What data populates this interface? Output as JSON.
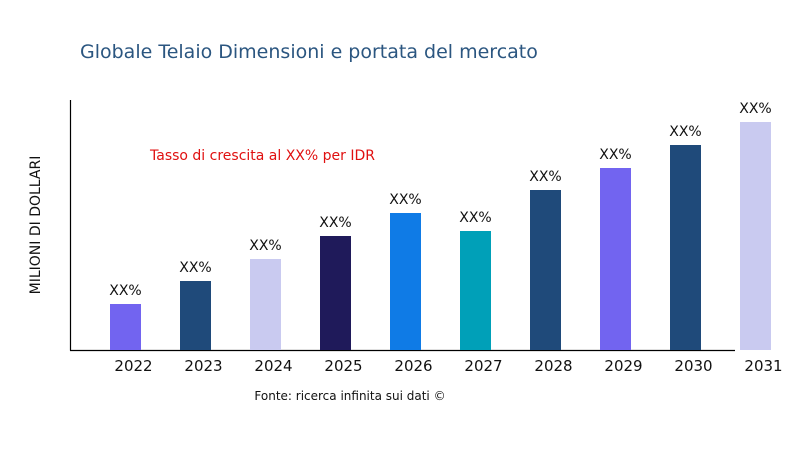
{
  "chart_data": {
    "type": "bar",
    "title": "Globale Telaio Dimensioni e portata del mercato",
    "xlabel": "",
    "ylabel": "MILIONI DI DOLLARI",
    "annotation": "Tasso di crescita al XX% per IDR",
    "source": "Fonte: ricerca infinita sui dati ©",
    "categories": [
      "2022",
      "2023",
      "2024",
      "2025",
      "2026",
      "2027",
      "2028",
      "2029",
      "2030",
      "2031"
    ],
    "values": [
      46,
      69,
      91,
      114,
      137,
      119,
      160,
      182,
      205,
      228
    ],
    "data_labels": [
      "XX%",
      "XX%",
      "XX%",
      "XX%",
      "XX%",
      "XX%",
      "XX%",
      "XX%",
      "XX%",
      "XX%"
    ],
    "colors": [
      "#7264f0",
      "#1f4a7a",
      "#c9caf0",
      "#1f1a5a",
      "#0f7be6",
      "#00a0b8",
      "#1f4a7a",
      "#7264f0",
      "#1f4a7a",
      "#c9caf0"
    ],
    "ylim": [
      0,
      250
    ],
    "y_ticks_shown": false,
    "grid": false,
    "legend": "none"
  }
}
